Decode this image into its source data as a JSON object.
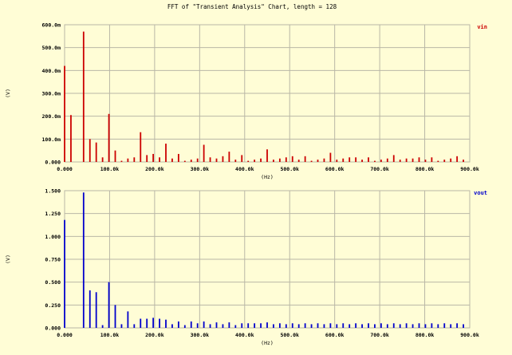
{
  "title": "FFT of \"Transient Analysis\" Chart, length = 128",
  "colors": {
    "background": "#fffdd6",
    "grid": "#b9b7a6",
    "vin": "#cc0000",
    "vout": "#0000cc"
  },
  "chart_data": [
    {
      "type": "bar",
      "xlabel": "(Hz)",
      "ylabel": "(V)",
      "xlim": [
        0,
        900000
      ],
      "ylim": [
        0,
        0.6
      ],
      "x_tick_labels": [
        "0.000",
        "100.0k",
        "200.0k",
        "300.0k",
        "400.0k",
        "500.0k",
        "600.0k",
        "700.0k",
        "800.0k",
        "900.0k"
      ],
      "y_tick_labels": [
        "0.000",
        "100.0m",
        "200.0m",
        "300.0m",
        "400.0m",
        "500.0m",
        "600.0m"
      ],
      "legend": "top-right",
      "grid": true,
      "series": [
        {
          "name": "vin",
          "x_step": 14062.5,
          "values": [
            0.42,
            0.205,
            0.0,
            0.57,
            0.1,
            0.085,
            0.02,
            0.21,
            0.05,
            0.005,
            0.015,
            0.02,
            0.13,
            0.03,
            0.035,
            0.02,
            0.08,
            0.015,
            0.035,
            0.005,
            0.01,
            0.015,
            0.075,
            0.02,
            0.015,
            0.025,
            0.045,
            0.01,
            0.03,
            0.005,
            0.01,
            0.015,
            0.055,
            0.01,
            0.015,
            0.02,
            0.025,
            0.01,
            0.025,
            0.005,
            0.01,
            0.015,
            0.04,
            0.01,
            0.015,
            0.02,
            0.02,
            0.01,
            0.02,
            0.005,
            0.01,
            0.015,
            0.03,
            0.01,
            0.015,
            0.015,
            0.02,
            0.01,
            0.02,
            0.005,
            0.01,
            0.015,
            0.025,
            0.01
          ]
        }
      ]
    },
    {
      "type": "bar",
      "xlabel": "(Hz)",
      "ylabel": "(V)",
      "xlim": [
        0,
        900000
      ],
      "ylim": [
        0,
        1.5
      ],
      "x_tick_labels": [
        "0.000",
        "100.0k",
        "200.0k",
        "300.0k",
        "400.0k",
        "500.0k",
        "600.0k",
        "700.0k",
        "800.0k",
        "900.0k"
      ],
      "y_tick_labels": [
        "0.000",
        "0.250",
        "0.500",
        "0.750",
        "1.000",
        "1.250",
        "1.500"
      ],
      "legend": "top-right",
      "grid": true,
      "series": [
        {
          "name": "vout",
          "x_step": 14062.5,
          "values": [
            1.18,
            0.0,
            0.0,
            1.48,
            0.41,
            0.39,
            0.03,
            0.5,
            0.25,
            0.04,
            0.18,
            0.04,
            0.1,
            0.1,
            0.11,
            0.1,
            0.09,
            0.04,
            0.07,
            0.03,
            0.07,
            0.05,
            0.07,
            0.04,
            0.06,
            0.04,
            0.06,
            0.03,
            0.05,
            0.05,
            0.05,
            0.05,
            0.06,
            0.04,
            0.05,
            0.04,
            0.05,
            0.04,
            0.05,
            0.04,
            0.05,
            0.04,
            0.05,
            0.04,
            0.05,
            0.04,
            0.05,
            0.04,
            0.05,
            0.04,
            0.05,
            0.04,
            0.05,
            0.04,
            0.05,
            0.04,
            0.05,
            0.04,
            0.05,
            0.04,
            0.05,
            0.04,
            0.05,
            0.04
          ]
        }
      ]
    }
  ]
}
